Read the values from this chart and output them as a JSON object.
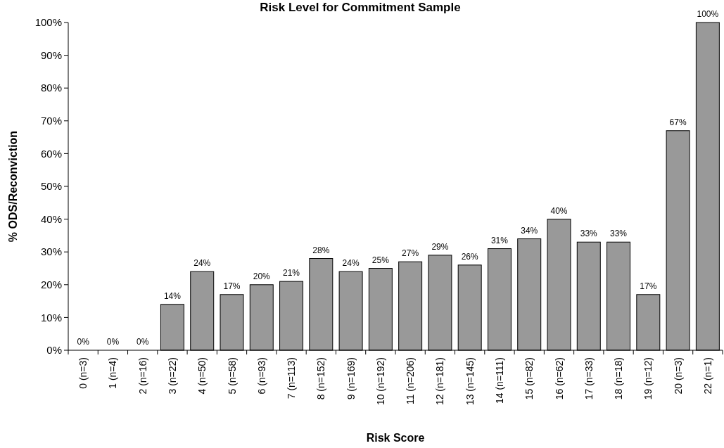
{
  "chart_data": {
    "type": "bar",
    "title": "Risk Level for Commitment Sample",
    "xlabel": "Risk Score",
    "ylabel": "% ODS/Reconviction",
    "categories": [
      "0 (n=3)",
      "1 (n=4)",
      "2 (n=16)",
      "3 (n=22)",
      "4 (n=50)",
      "5 (n=58)",
      "6 (n=93)",
      "7 (n=113)",
      "8 (n=152)",
      "9 (n=169)",
      "10 (n=192)",
      "11 (n=206)",
      "12 (n=181)",
      "13 (n=145)",
      "14 (n=111)",
      "15 (n=82)",
      "16 (n=62)",
      "17 (n=33)",
      "18 (n=18)",
      "19 (n=12)",
      "20 (n=3)",
      "22 (n=1)"
    ],
    "values": [
      0,
      0,
      0,
      14,
      24,
      17,
      20,
      21,
      28,
      24,
      25,
      27,
      29,
      26,
      31,
      34,
      40,
      33,
      33,
      17,
      67,
      100
    ],
    "value_labels": [
      "0%",
      "0%",
      "0%",
      "14%",
      "24%",
      "17%",
      "20%",
      "21%",
      "28%",
      "24%",
      "25%",
      "27%",
      "29%",
      "26%",
      "31%",
      "34%",
      "40%",
      "33%",
      "33%",
      "17%",
      "67%",
      "100%"
    ],
    "color": "#999999",
    "ylim": [
      0,
      100
    ],
    "yticks": [
      {
        "value": 0,
        "label": "0%"
      },
      {
        "value": 10,
        "label": "10%"
      },
      {
        "value": 20,
        "label": "20%"
      },
      {
        "value": 30,
        "label": "30%"
      },
      {
        "value": 40,
        "label": "40%"
      },
      {
        "value": 50,
        "label": "50%"
      },
      {
        "value": 60,
        "label": "60%"
      },
      {
        "value": 70,
        "label": "70%"
      },
      {
        "value": 80,
        "label": "80%"
      },
      {
        "value": 90,
        "label": "90%"
      },
      {
        "value": 100,
        "label": "100%"
      }
    ],
    "grid": false
  }
}
